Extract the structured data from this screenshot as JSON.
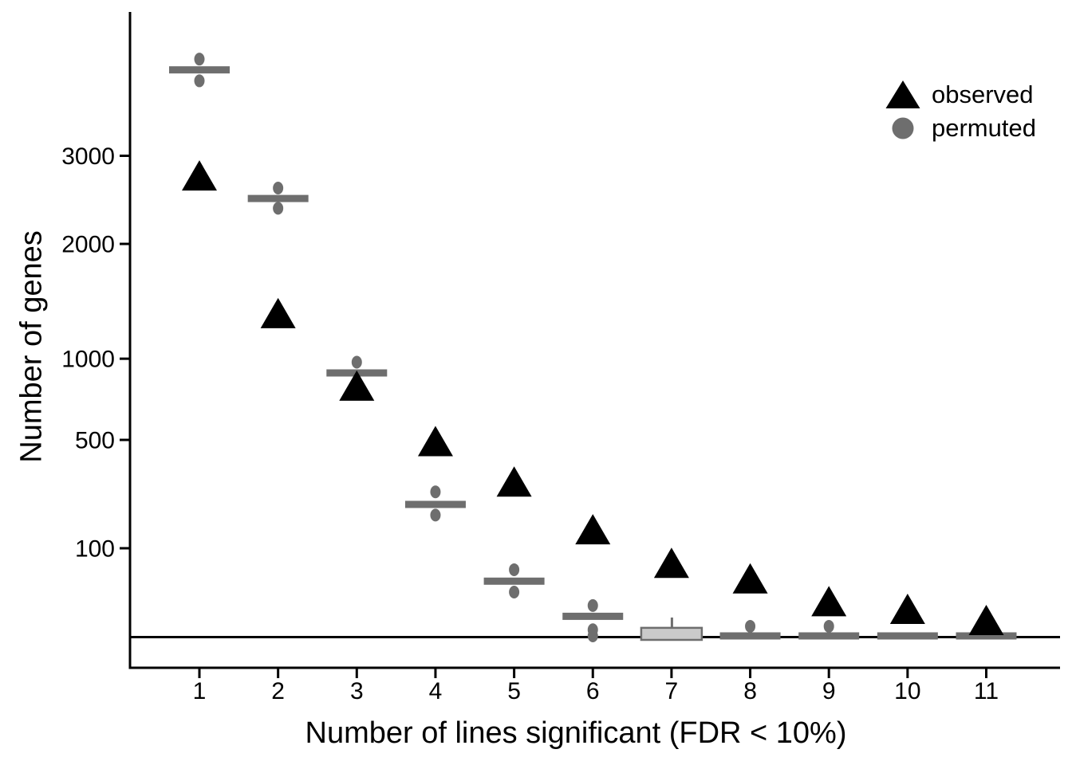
{
  "chart_data": {
    "type": "scatter+boxplot",
    "title": "",
    "xlabel": "Number of lines significant (FDR < 10%)",
    "ylabel": "Number of genes",
    "y_scale": "sqrt",
    "ylim": [
      0,
      4750
    ],
    "baseline_value": 0,
    "grid": "off",
    "x_categories": [
      "1",
      "2",
      "3",
      "4",
      "5",
      "6",
      "7",
      "8",
      "9",
      "10",
      "11"
    ],
    "y_ticks": [
      {
        "value": 100,
        "label": "100"
      },
      {
        "value": 500,
        "label": "500"
      },
      {
        "value": 1000,
        "label": "1000"
      },
      {
        "value": 2000,
        "label": "2000"
      },
      {
        "value": 3000,
        "label": "3000"
      }
    ],
    "legend": {
      "position": "top-right",
      "entries": [
        {
          "label": "observed",
          "marker": "triangle",
          "color": "#000000"
        },
        {
          "label": "permuted",
          "marker": "circle",
          "color": "#6e6e6e"
        }
      ]
    },
    "series": {
      "observed": {
        "name": "observed",
        "marker": "triangle",
        "color": "#000000",
        "values": [
          2750,
          1350,
          810,
          490,
          307,
          146,
          68,
          42,
          15,
          9,
          3
        ]
      },
      "permuted": {
        "name": "permuted",
        "marker": "circle",
        "color": "#6e6e6e",
        "medians": [
          4170,
          2490,
          900,
          225,
          39,
          5,
          null,
          0,
          0,
          0,
          0
        ],
        "outliers": [
          [
            4330,
            4010
          ],
          [
            2610,
            2380
          ],
          [
            975
          ],
          [
            270,
            190
          ],
          [
            57,
            25
          ],
          [
            12,
            0.5,
            0
          ],
          [],
          [
            1.2
          ],
          [
            1.2
          ],
          [],
          []
        ],
        "box_at_x7": {
          "x": "7",
          "whisker_top": 4.4,
          "q3": 0.85,
          "q1": 0,
          "fill": "#cacaca",
          "border": "#6e6e6e"
        }
      }
    },
    "colors": {
      "observed": "#000000",
      "permuted": "#6e6e6e",
      "baseline": "#000000",
      "axis": "#000000",
      "box_fill": "#cacaca",
      "background": "#ffffff"
    }
  }
}
